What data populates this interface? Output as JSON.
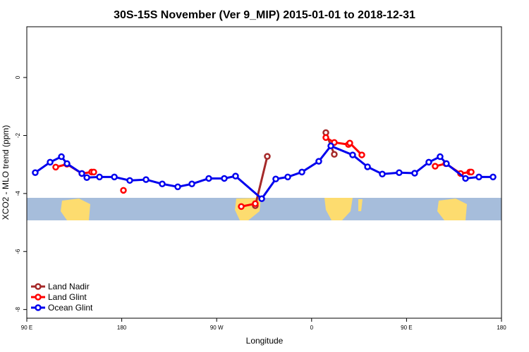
{
  "chart_data": {
    "type": "line",
    "title": "30S-15S November (Ver 9_MIP)   2015-01-01 to 2018-12-31",
    "x_label": "Longitude",
    "y_label": "XCO2 - MLO trend (ppm)",
    "xlim": [
      90,
      540
    ],
    "ylim": [
      -8.3,
      1.75
    ],
    "xticks": [
      {
        "value": 90,
        "label": "90 E"
      },
      180,
      {
        "value": 270,
        "label": "90 W"
      },
      {
        "value": 360,
        "label": "0"
      },
      {
        "value": 450,
        "label": "90 E"
      },
      {
        "value": 540,
        "label": "180"
      }
    ],
    "yticks": [
      0,
      -2,
      -4,
      -6,
      -8
    ],
    "legend": "bottom-left",
    "series": [
      {
        "name": "Land Nadir",
        "color": "#a52a2a",
        "x": [
          306.6,
          318.0,
          null,
          373.5,
          381.5
        ],
        "values": [
          -4.42,
          -2.72,
          null,
          -1.9,
          -2.65
        ]
      },
      {
        "name": "Land Glint",
        "color": "#ff0000",
        "x": [
          117.4,
          128.1,
          142.2,
          151.5,
          153.5,
          null,
          181.6,
          null,
          293.3,
          306.6,
          null,
          373.5,
          381.5,
          394.9,
          396.2,
          407.6,
          null,
          477.1,
          487.2,
          501.2,
          509.9,
          511.3
        ],
        "values": [
          -3.09,
          -2.99,
          -3.31,
          -3.26,
          -3.26,
          null,
          -3.89,
          null,
          -4.45,
          -4.35,
          null,
          -2.07,
          -2.24,
          -2.31,
          -2.26,
          -2.67,
          null,
          -3.06,
          -2.97,
          -3.31,
          -3.26,
          -3.26
        ]
      },
      {
        "name": "Ocean Glint",
        "color": "#0000ee",
        "x": [
          98.0,
          112.1,
          122.8,
          128.1,
          142.2,
          146.9,
          158.9,
          173.0,
          187.6,
          203.0,
          218.4,
          233.1,
          246.5,
          262.5,
          277.2,
          287.9,
          312.7,
          326.0,
          337.4,
          350.8,
          366.8,
          378.2,
          398.9,
          413.0,
          427.0,
          443.0,
          457.7,
          471.1,
          481.8,
          487.8,
          505.9,
          518.6,
          532.0
        ],
        "values": [
          -3.28,
          -2.92,
          -2.73,
          -2.97,
          -3.31,
          -3.45,
          -3.43,
          -3.43,
          -3.55,
          -3.52,
          -3.67,
          -3.77,
          -3.67,
          -3.48,
          -3.48,
          -3.4,
          -4.18,
          -3.5,
          -3.43,
          -3.26,
          -2.89,
          -2.36,
          -2.67,
          -3.08,
          -3.33,
          -3.28,
          -3.3,
          -2.92,
          -2.73,
          -2.97,
          -3.48,
          -3.43,
          -3.43
        ]
      }
    ]
  }
}
